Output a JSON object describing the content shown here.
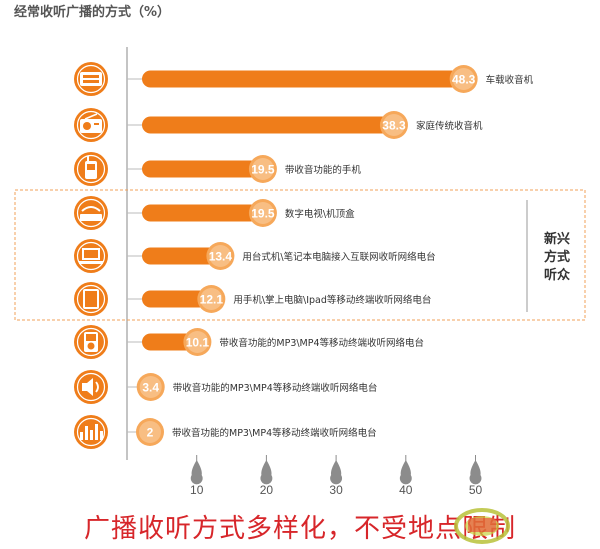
{
  "title": "经常收听广播的方式（%）",
  "footer_caption": "广播收听方式多样化，不受地点限制",
  "group_label": [
    "新兴",
    "方式",
    "听众"
  ],
  "colors": {
    "bar": "#ef7d1a",
    "bar_light": "#f6a85a",
    "icon": "#ef7d1a",
    "tick_drop": "#8c8c8c",
    "group_border": "#f0a15a",
    "caption": "#d7262a",
    "text": "#333333",
    "axis_text": "#555555"
  },
  "icons": [
    "car-radio-icon",
    "home-radio-icon",
    "mobile-phone-icon",
    "set-top-box-icon",
    "laptop-icon",
    "tablet-icon",
    "mp3-player-icon",
    "speaker-icon",
    "equalizer-icon"
  ],
  "chart_data": {
    "type": "bar",
    "title": "经常收听广播的方式（%）",
    "orientation": "horizontal",
    "categories": [
      "车载收音机",
      "家庭传统收音机",
      "带收音功能的手机",
      "数字电视\\机顶盒",
      "用台式机\\笔记本电脑接入互联网收听网络电台",
      "用手机\\掌上电脑\\Ipad等移动终端收听网络电台",
      "带收音功能的MP3\\MP4等移动终端收听网络电台",
      "带收音功能的MP3\\MP4等移动终端收听网络电台",
      "带收音功能的MP3\\MP4等移动终端收听网络电台"
    ],
    "values": [
      48.3,
      38.3,
      19.5,
      19.5,
      13.4,
      12.1,
      10.1,
      3.4,
      2
    ],
    "value_labels": [
      "48.3",
      "38.3",
      "19.5",
      "19.5",
      "13.4",
      "12.1",
      "10.1",
      "3.4",
      "2"
    ],
    "x_ticks": [
      10,
      20,
      30,
      40,
      50
    ],
    "xlim": [
      0,
      50
    ],
    "grid": false,
    "legend": "none"
  }
}
